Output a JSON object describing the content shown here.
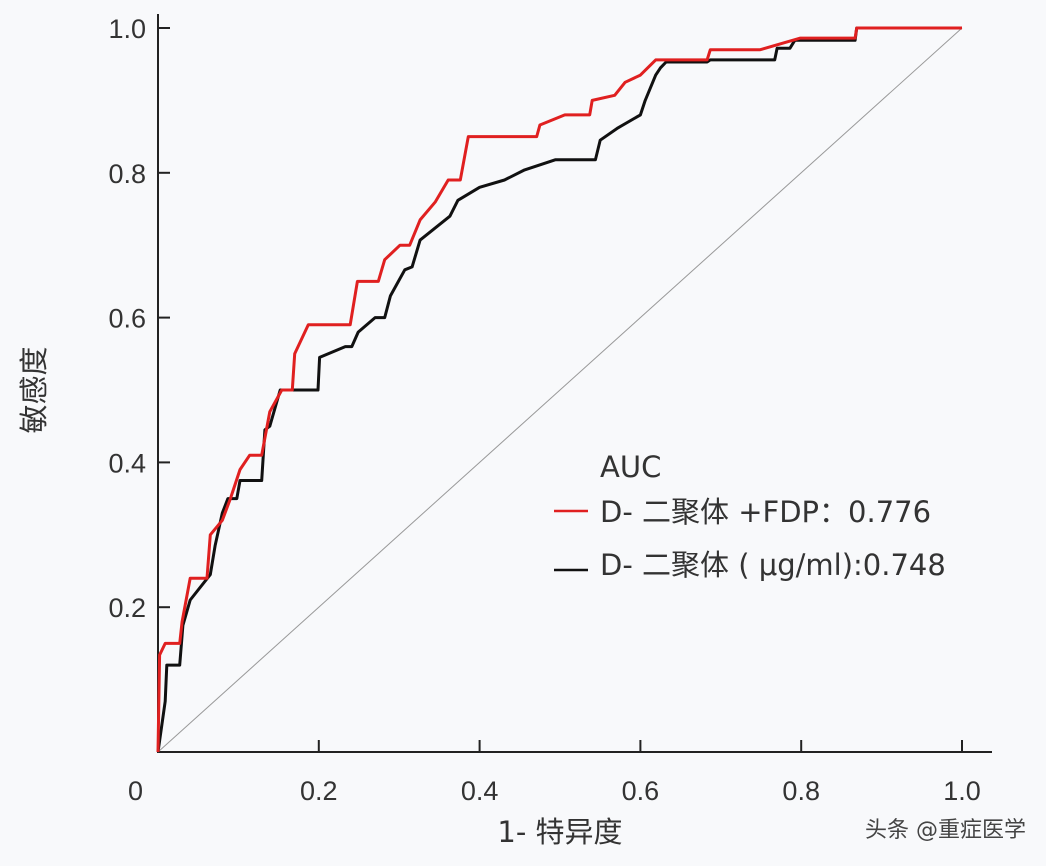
{
  "chart_data": {
    "type": "line",
    "title": "",
    "xlabel": "1- 特异度",
    "ylabel": "敏感度",
    "xlim": [
      0,
      1.0
    ],
    "ylim": [
      0,
      1.0
    ],
    "grid": false,
    "x_ticks": [
      "0",
      "0.2",
      "0.4",
      "0.6",
      "0.8",
      "1.0"
    ],
    "y_ticks": [
      "0.2",
      "0.4",
      "0.6",
      "0.8",
      "1.0"
    ],
    "legend_title": "AUC",
    "legend_position": "right",
    "series": [
      {
        "name": "D- 二聚体 +FDP",
        "legend_label": "D- 二聚体 +FDP：0.776",
        "auc": 0.776,
        "color": "#e02020",
        "points": [
          [
            0,
            0
          ],
          [
            0.002,
            0.134
          ],
          [
            0.009,
            0.15
          ],
          [
            0.027,
            0.15
          ],
          [
            0.03,
            0.18
          ],
          [
            0.04,
            0.24
          ],
          [
            0.061,
            0.24
          ],
          [
            0.065,
            0.3
          ],
          [
            0.08,
            0.32
          ],
          [
            0.09,
            0.35
          ],
          [
            0.102,
            0.39
          ],
          [
            0.114,
            0.41
          ],
          [
            0.129,
            0.41
          ],
          [
            0.139,
            0.47
          ],
          [
            0.154,
            0.5
          ],
          [
            0.167,
            0.5
          ],
          [
            0.17,
            0.55
          ],
          [
            0.187,
            0.59
          ],
          [
            0.239,
            0.59
          ],
          [
            0.248,
            0.65
          ],
          [
            0.274,
            0.65
          ],
          [
            0.282,
            0.68
          ],
          [
            0.301,
            0.7
          ],
          [
            0.313,
            0.7
          ],
          [
            0.326,
            0.735
          ],
          [
            0.345,
            0.76
          ],
          [
            0.361,
            0.79
          ],
          [
            0.376,
            0.79
          ],
          [
            0.386,
            0.85
          ],
          [
            0.471,
            0.85
          ],
          [
            0.475,
            0.866
          ],
          [
            0.506,
            0.88
          ],
          [
            0.537,
            0.88
          ],
          [
            0.54,
            0.9
          ],
          [
            0.568,
            0.907
          ],
          [
            0.581,
            0.925
          ],
          [
            0.6,
            0.935
          ],
          [
            0.619,
            0.956
          ],
          [
            0.683,
            0.956
          ],
          [
            0.687,
            0.97
          ],
          [
            0.749,
            0.97
          ],
          [
            0.799,
            0.986
          ],
          [
            0.867,
            0.986
          ],
          [
            0.869,
            1.0
          ],
          [
            1.0,
            1.0
          ]
        ]
      },
      {
        "name": "D- 二聚体 (μg/ml)",
        "legend_label": "D- 二聚体 ( μg/ml):0.748",
        "auc": 0.748,
        "color": "#111111",
        "points": [
          [
            0,
            0
          ],
          [
            0.009,
            0.07
          ],
          [
            0.011,
            0.12
          ],
          [
            0.027,
            0.12
          ],
          [
            0.031,
            0.175
          ],
          [
            0.04,
            0.21
          ],
          [
            0.065,
            0.245
          ],
          [
            0.071,
            0.285
          ],
          [
            0.08,
            0.33
          ],
          [
            0.087,
            0.35
          ],
          [
            0.098,
            0.35
          ],
          [
            0.102,
            0.375
          ],
          [
            0.129,
            0.375
          ],
          [
            0.133,
            0.445
          ],
          [
            0.139,
            0.45
          ],
          [
            0.152,
            0.5
          ],
          [
            0.199,
            0.5
          ],
          [
            0.201,
            0.545
          ],
          [
            0.233,
            0.56
          ],
          [
            0.241,
            0.56
          ],
          [
            0.249,
            0.58
          ],
          [
            0.27,
            0.6
          ],
          [
            0.282,
            0.6
          ],
          [
            0.289,
            0.63
          ],
          [
            0.299,
            0.65
          ],
          [
            0.307,
            0.666
          ],
          [
            0.316,
            0.67
          ],
          [
            0.326,
            0.707
          ],
          [
            0.363,
            0.74
          ],
          [
            0.373,
            0.762
          ],
          [
            0.4,
            0.78
          ],
          [
            0.431,
            0.79
          ],
          [
            0.456,
            0.804
          ],
          [
            0.494,
            0.818
          ],
          [
            0.544,
            0.818
          ],
          [
            0.55,
            0.845
          ],
          [
            0.572,
            0.862
          ],
          [
            0.6,
            0.88
          ],
          [
            0.606,
            0.9
          ],
          [
            0.619,
            0.935
          ],
          [
            0.625,
            0.945
          ],
          [
            0.632,
            0.953
          ],
          [
            0.683,
            0.953
          ],
          [
            0.687,
            0.956
          ],
          [
            0.767,
            0.956
          ],
          [
            0.77,
            0.972
          ],
          [
            0.786,
            0.972
          ],
          [
            0.792,
            0.983
          ],
          [
            0.867,
            0.983
          ],
          [
            0.869,
            1.0
          ],
          [
            1.0,
            1.0
          ]
        ]
      },
      {
        "name": "reference",
        "color": "#999999",
        "points": [
          [
            0,
            0
          ],
          [
            1,
            1
          ]
        ]
      }
    ]
  },
  "watermark": "头条 @重症医学"
}
